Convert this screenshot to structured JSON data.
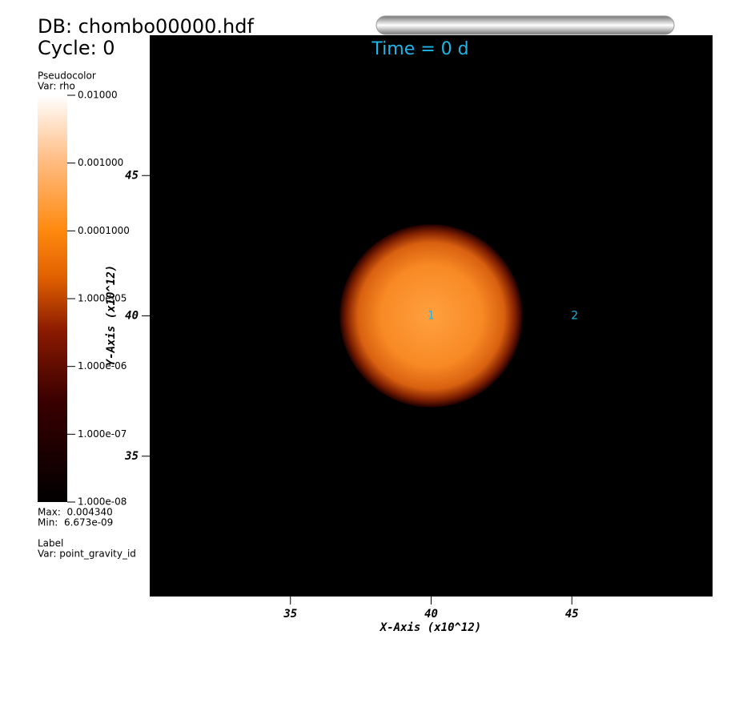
{
  "chart_data": {
    "type": "pseudocolor",
    "database": "DB: chombo00000.hdf",
    "cycle": "Cycle: 0",
    "time": "Time = 0 d",
    "xlabel": "X-Axis (x10^12)",
    "ylabel": "Y-Axis (x10^12)",
    "xlim": [
      30,
      50
    ],
    "ylim": [
      30,
      50
    ],
    "xticks": [
      35,
      40,
      45
    ],
    "yticks": [
      35,
      40,
      45
    ],
    "background": "#000000",
    "colorbar": {
      "plot": "Pseudocolor",
      "var": "Var: rho",
      "log": true,
      "lim": [
        1e-08,
        0.01
      ],
      "ticks": [
        {
          "value": 0.01,
          "label": "0.01000"
        },
        {
          "value": 0.001,
          "label": "0.001000"
        },
        {
          "value": 0.0001,
          "label": "0.0001000"
        },
        {
          "value": 1e-05,
          "label": "1.000e-05"
        },
        {
          "value": 1e-06,
          "label": "1.000e-06"
        },
        {
          "value": 1e-07,
          "label": "1.000e-07"
        },
        {
          "value": 1e-08,
          "label": "1.000e-08"
        }
      ],
      "max": "Max:  0.004340",
      "min": "Min:  6.673e-09"
    },
    "blob": {
      "x": 40,
      "y": 40,
      "radius": 3.25
    },
    "label_plot": {
      "plot": "Label",
      "var": "Var: point_gravity_id",
      "color": "#22b4e6",
      "points": [
        {
          "text": "1",
          "x": 40,
          "y": 40
        },
        {
          "text": "2",
          "x": 45.1,
          "y": 40
        }
      ]
    }
  }
}
